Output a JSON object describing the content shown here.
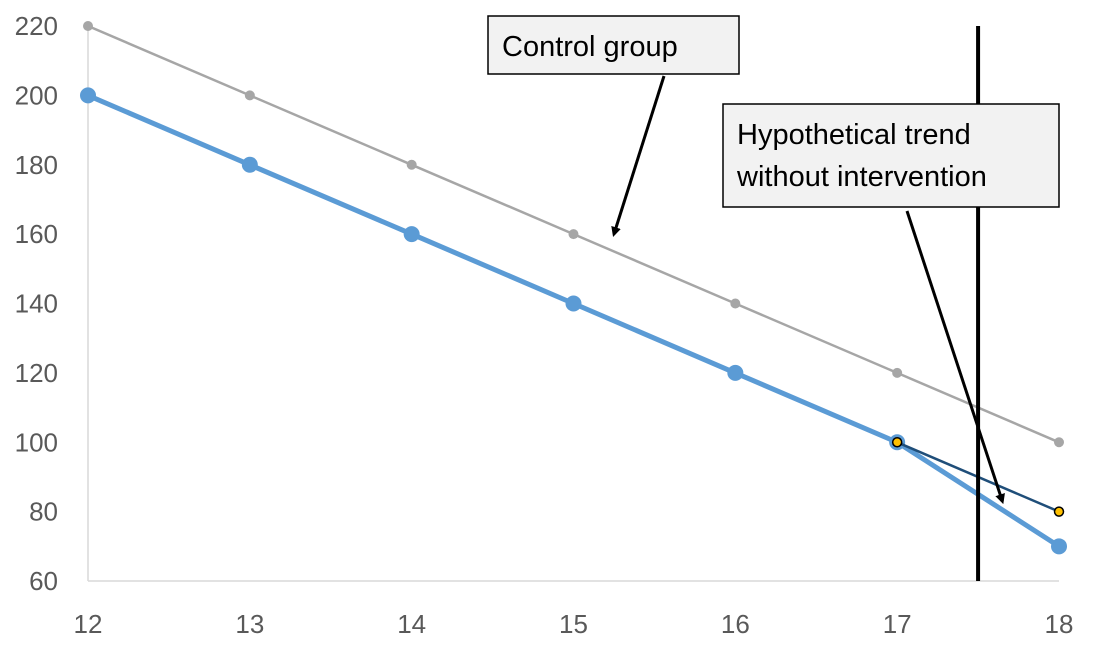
{
  "chart_data": {
    "type": "line",
    "title": "",
    "xlabel": "",
    "ylabel": "",
    "x": [
      12,
      13,
      14,
      15,
      16,
      17,
      18
    ],
    "xlim": [
      12,
      18
    ],
    "ylim": [
      60,
      220
    ],
    "yticks": [
      60,
      80,
      100,
      120,
      140,
      160,
      180,
      200,
      220
    ],
    "xticks": [
      12,
      13,
      14,
      15,
      16,
      17,
      18
    ],
    "grid": false,
    "legend": "none",
    "series": [
      {
        "key": "control",
        "x": [
          12,
          13,
          14,
          15,
          16,
          17,
          18
        ],
        "values": [
          220,
          200,
          180,
          160,
          140,
          120,
          100
        ],
        "color": "#a6a6a6"
      },
      {
        "key": "treatment",
        "x": [
          12,
          13,
          14,
          15,
          16,
          17,
          18
        ],
        "values": [
          200,
          180,
          160,
          140,
          120,
          100,
          70
        ],
        "color": "#5b9bd5"
      },
      {
        "key": "counterfactual",
        "x": [
          17,
          18
        ],
        "values": [
          100,
          80
        ],
        "color": "#1f4e79",
        "marker_color": "#ffc000"
      }
    ],
    "intervention_line": {
      "x": 17.5,
      "color": "#000000"
    },
    "annotations": [
      {
        "key": "control",
        "lines": [
          "Control group"
        ],
        "points_to": {
          "x": 15.25,
          "y": 160
        }
      },
      {
        "key": "hypo",
        "lines": [
          "Hypothetical trend",
          "without intervention"
        ],
        "points_to": {
          "x": 17.65,
          "y": 83
        }
      }
    ]
  }
}
